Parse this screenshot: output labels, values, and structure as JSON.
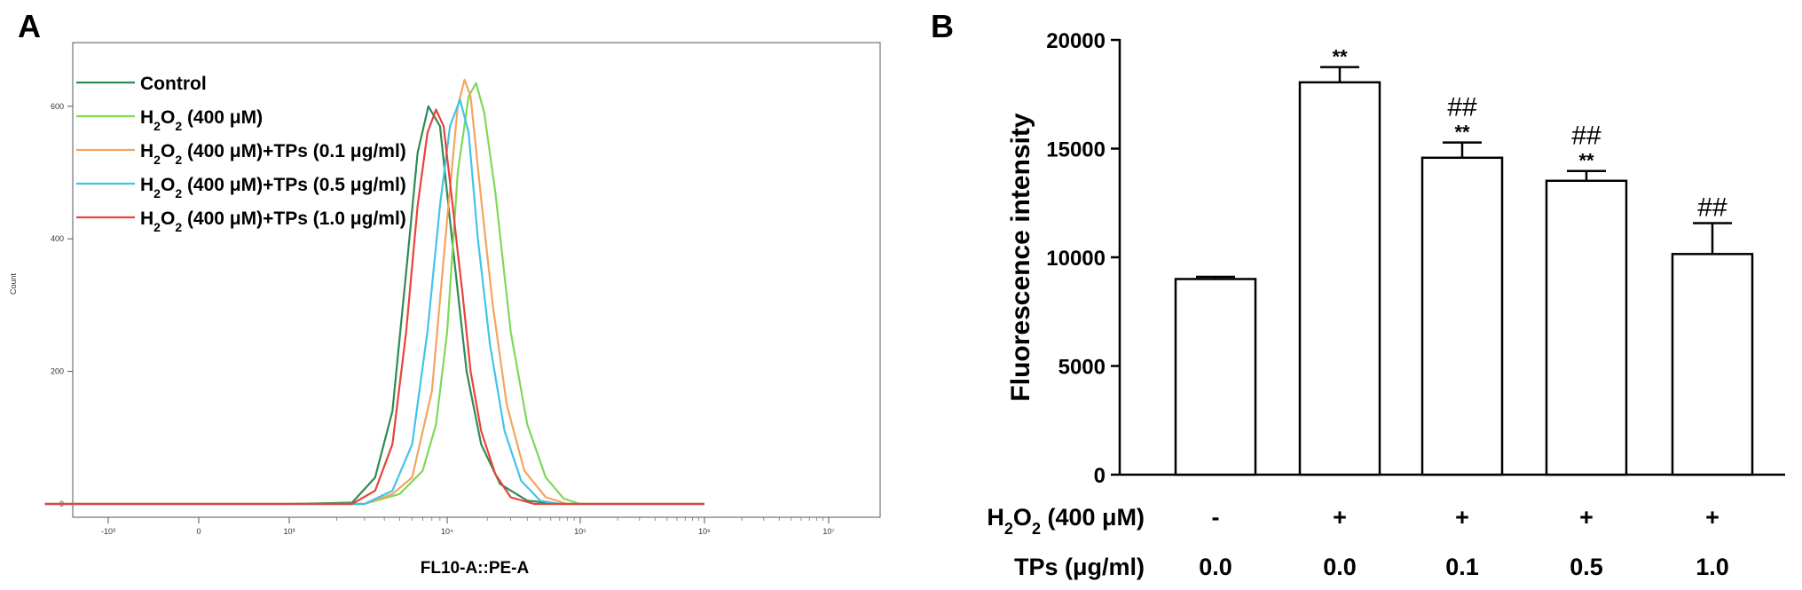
{
  "panel_a": {
    "label": "A",
    "chart_data": {
      "type": "line",
      "xlabel": "FL10-A::PE-A",
      "ylabel": "Count",
      "x_scale": "biexponential",
      "x_ticks": [
        "-10³",
        "0",
        "10³",
        "10⁴",
        "10⁵",
        "10⁶",
        "10⁷"
      ],
      "y_ticks": [
        "0",
        "200",
        "400",
        "600"
      ],
      "ylim": [
        0,
        680
      ],
      "legend_position": "top-left",
      "grid": false,
      "series": [
        {
          "name": "Control",
          "name_parts": [
            "Control"
          ],
          "color": "#2e8b57",
          "points": [
            [
              -1700,
              0
            ],
            [
              1000,
              0
            ],
            [
              2500,
              2
            ],
            [
              3500,
              40
            ],
            [
              4500,
              140
            ],
            [
              5500,
              350
            ],
            [
              6500,
              530
            ],
            [
              7600,
              600
            ],
            [
              9000,
              570
            ],
            [
              11000,
              390
            ],
            [
              14000,
              200
            ],
            [
              18000,
              90
            ],
            [
              25000,
              30
            ],
            [
              40000,
              5
            ],
            [
              70000,
              0
            ],
            [
              1000000,
              0
            ]
          ]
        },
        {
          "name": "H₂O₂ (400 μM)",
          "name_parts": [
            "H",
            "2",
            "O",
            "2",
            " (400  μM)"
          ],
          "color": "#7ed957",
          "points": [
            [
              -1700,
              0
            ],
            [
              1000,
              0
            ],
            [
              3000,
              0
            ],
            [
              5000,
              15
            ],
            [
              7000,
              50
            ],
            [
              8500,
              120
            ],
            [
              10000,
              260
            ],
            [
              12000,
              500
            ],
            [
              14500,
              615
            ],
            [
              16500,
              635
            ],
            [
              19000,
              590
            ],
            [
              23000,
              470
            ],
            [
              30000,
              260
            ],
            [
              40000,
              120
            ],
            [
              55000,
              40
            ],
            [
              75000,
              8
            ],
            [
              100000,
              0
            ],
            [
              1000000,
              0
            ]
          ]
        },
        {
          "name": "H₂O₂ (400  μM)+TPs (0.1 μg/ml)",
          "name_parts": [
            "H",
            "2",
            "O",
            "2",
            " (400  μM)+TPs (0.1 μg/ml)"
          ],
          "color": "#f4a460",
          "points": [
            [
              -1700,
              0
            ],
            [
              1000,
              0
            ],
            [
              3000,
              0
            ],
            [
              4500,
              15
            ],
            [
              6000,
              40
            ],
            [
              8000,
              170
            ],
            [
              10000,
              430
            ],
            [
              12000,
              600
            ],
            [
              13500,
              640
            ],
            [
              15000,
              615
            ],
            [
              18000,
              460
            ],
            [
              22000,
              300
            ],
            [
              28000,
              150
            ],
            [
              38000,
              50
            ],
            [
              55000,
              10
            ],
            [
              80000,
              0
            ],
            [
              1000000,
              0
            ]
          ]
        },
        {
          "name": "H₂O₂ (400  μM)+TPs (0.5 μg/ml)",
          "name_parts": [
            "H",
            "2",
            "O",
            "2",
            " (400  μM)+TPs (0.5 μg/ml)"
          ],
          "color": "#40c4e8",
          "points": [
            [
              -1700,
              0
            ],
            [
              1000,
              0
            ],
            [
              3000,
              0
            ],
            [
              4500,
              20
            ],
            [
              6000,
              90
            ],
            [
              7500,
              260
            ],
            [
              9000,
              450
            ],
            [
              10500,
              570
            ],
            [
              12500,
              610
            ],
            [
              14500,
              560
            ],
            [
              17000,
              400
            ],
            [
              21000,
              240
            ],
            [
              27000,
              110
            ],
            [
              36000,
              35
            ],
            [
              50000,
              5
            ],
            [
              70000,
              0
            ],
            [
              1000000,
              0
            ]
          ]
        },
        {
          "name": "H₂O₂ (400  μM)+TPs (1.0 μg/ml)",
          "name_parts": [
            "H",
            "2",
            "O",
            "2",
            " (400  μM)+TPs (1.0 μg/ml)"
          ],
          "color": "#e8433e",
          "points": [
            [
              -1700,
              0
            ],
            [
              1000,
              0
            ],
            [
              2500,
              0
            ],
            [
              3500,
              20
            ],
            [
              4500,
              90
            ],
            [
              5500,
              260
            ],
            [
              6500,
              450
            ],
            [
              7500,
              560
            ],
            [
              8500,
              595
            ],
            [
              9500,
              570
            ],
            [
              11000,
              450
            ],
            [
              12000,
              380
            ],
            [
              13000,
              320
            ],
            [
              15000,
              200
            ],
            [
              18000,
              110
            ],
            [
              23000,
              45
            ],
            [
              30000,
              10
            ],
            [
              45000,
              0
            ],
            [
              1000000,
              0
            ]
          ]
        }
      ]
    }
  },
  "panel_b": {
    "label": "B",
    "chart_data": {
      "type": "bar",
      "ylabel": "Fluorescence intensity",
      "ylim": [
        0,
        20000
      ],
      "y_ticks": [
        0,
        5000,
        10000,
        15000,
        20000
      ],
      "categories": [
        "1",
        "2",
        "3",
        "4",
        "5"
      ],
      "values": [
        9000,
        18050,
        14580,
        13520,
        10150
      ],
      "errors": [
        100,
        700,
        700,
        450,
        1420
      ],
      "star_labels": [
        "",
        "**",
        "**",
        "**",
        ""
      ],
      "hash_labels": [
        "",
        "",
        "##",
        "##",
        "##"
      ],
      "row_labels": [
        {
          "label": "H₂O₂ (400 μM)",
          "label_parts": [
            "H",
            "2",
            "O",
            "2",
            " (400 μM)"
          ],
          "values": [
            "-",
            "+",
            "+",
            "+",
            "+"
          ]
        },
        {
          "label": "TPs (μg/ml)",
          "label_parts": [
            "TPs (μg/ml)"
          ],
          "values": [
            "0.0",
            "0.0",
            "0.1",
            "0.5",
            "1.0"
          ]
        }
      ]
    }
  }
}
